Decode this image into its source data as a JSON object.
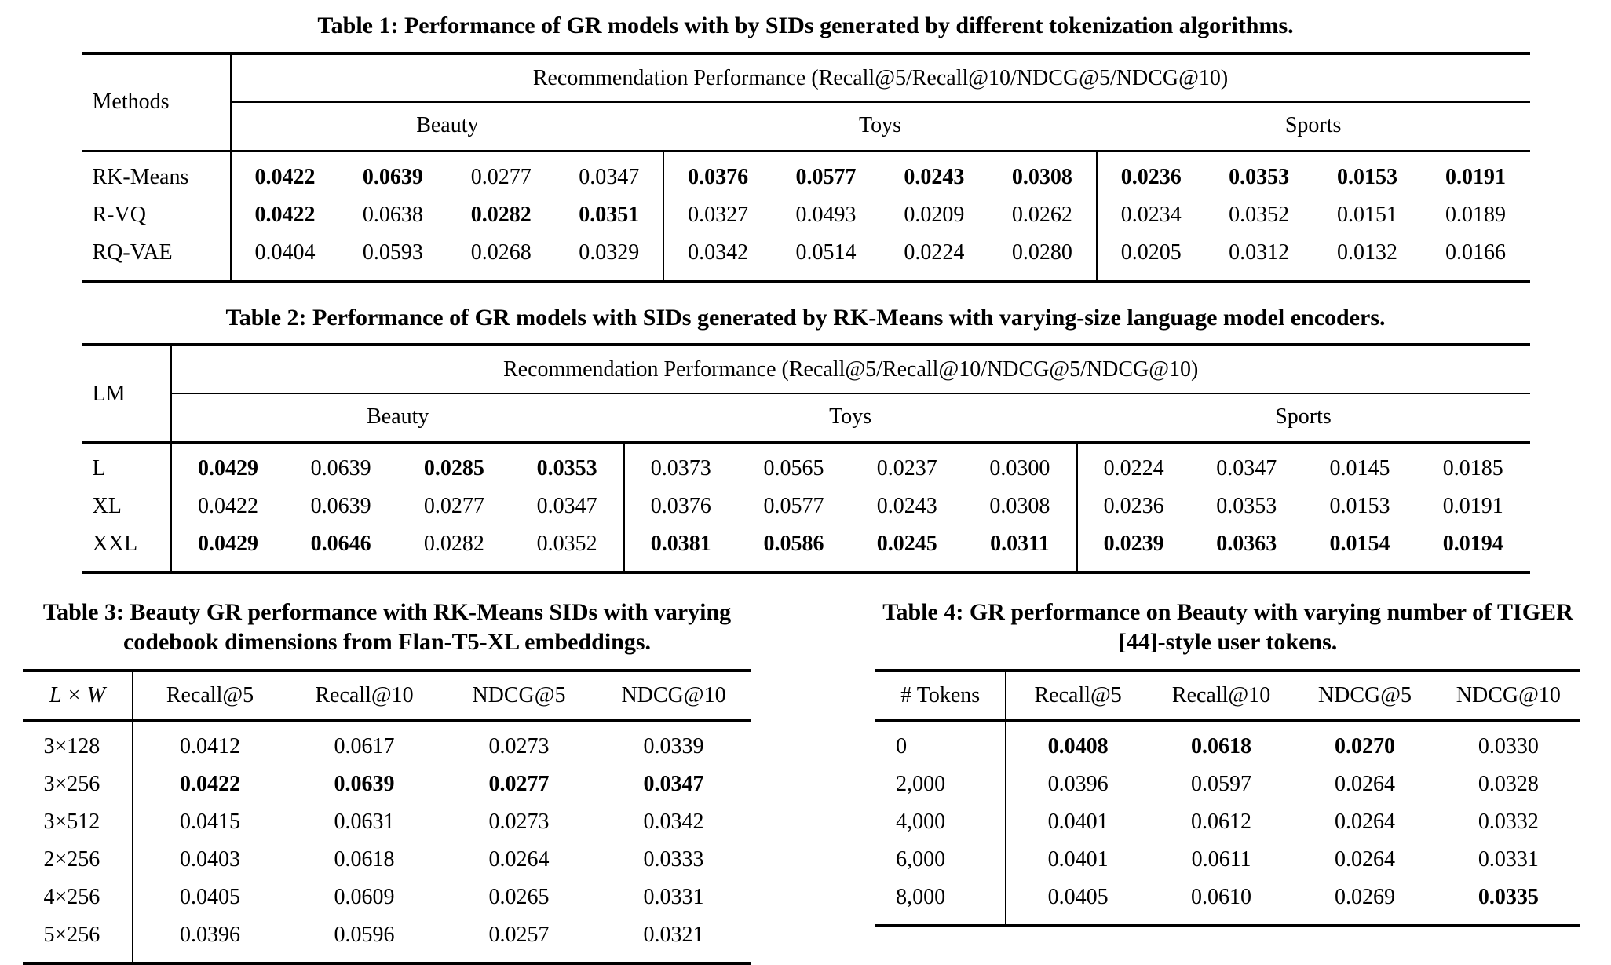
{
  "page": {
    "background": "#ffffff",
    "text_color": "#000000"
  },
  "table1": {
    "caption": "Table 1: Performance of GR models with by SIDs generated by different tokenization algorithms.",
    "row_header": "Methods",
    "perf_header": "Recommendation Performance (Recall@5/Recall@10/NDCG@5/NDCG@10)",
    "groups": [
      "Beauty",
      "Toys",
      "Sports"
    ],
    "rows": [
      {
        "label": "RK-Means",
        "cells": [
          {
            "v": "0.0422",
            "bold": true
          },
          {
            "v": "0.0639",
            "bold": true
          },
          {
            "v": "0.0277"
          },
          {
            "v": "0.0347"
          },
          {
            "v": "0.0376",
            "bold": true
          },
          {
            "v": "0.0577",
            "bold": true
          },
          {
            "v": "0.0243",
            "bold": true
          },
          {
            "v": "0.0308",
            "bold": true
          },
          {
            "v": "0.0236",
            "bold": true
          },
          {
            "v": "0.0353",
            "bold": true
          },
          {
            "v": "0.0153",
            "bold": true
          },
          {
            "v": "0.0191",
            "bold": true
          }
        ]
      },
      {
        "label": "R-VQ",
        "cells": [
          {
            "v": "0.0422",
            "bold": true
          },
          {
            "v": "0.0638"
          },
          {
            "v": "0.0282",
            "bold": true
          },
          {
            "v": "0.0351",
            "bold": true
          },
          {
            "v": "0.0327"
          },
          {
            "v": "0.0493"
          },
          {
            "v": "0.0209"
          },
          {
            "v": "0.0262"
          },
          {
            "v": "0.0234"
          },
          {
            "v": "0.0352"
          },
          {
            "v": "0.0151"
          },
          {
            "v": "0.0189"
          }
        ]
      },
      {
        "label": "RQ-VAE",
        "cells": [
          {
            "v": "0.0404"
          },
          {
            "v": "0.0593"
          },
          {
            "v": "0.0268"
          },
          {
            "v": "0.0329"
          },
          {
            "v": "0.0342"
          },
          {
            "v": "0.0514"
          },
          {
            "v": "0.0224"
          },
          {
            "v": "0.0280"
          },
          {
            "v": "0.0205"
          },
          {
            "v": "0.0312"
          },
          {
            "v": "0.0132"
          },
          {
            "v": "0.0166"
          }
        ]
      }
    ]
  },
  "table2": {
    "caption": "Table 2: Performance of GR models with SIDs generated by RK-Means with varying-size language model encoders.",
    "row_header": "LM",
    "perf_header": "Recommendation Performance (Recall@5/Recall@10/NDCG@5/NDCG@10)",
    "groups": [
      "Beauty",
      "Toys",
      "Sports"
    ],
    "rows": [
      {
        "label": "L",
        "cells": [
          {
            "v": "0.0429",
            "bold": true
          },
          {
            "v": "0.0639"
          },
          {
            "v": "0.0285",
            "bold": true
          },
          {
            "v": "0.0353",
            "bold": true
          },
          {
            "v": "0.0373"
          },
          {
            "v": "0.0565"
          },
          {
            "v": "0.0237"
          },
          {
            "v": "0.0300"
          },
          {
            "v": "0.0224"
          },
          {
            "v": "0.0347"
          },
          {
            "v": "0.0145"
          },
          {
            "v": "0.0185"
          }
        ]
      },
      {
        "label": "XL",
        "cells": [
          {
            "v": "0.0422"
          },
          {
            "v": "0.0639"
          },
          {
            "v": "0.0277"
          },
          {
            "v": "0.0347"
          },
          {
            "v": "0.0376"
          },
          {
            "v": "0.0577"
          },
          {
            "v": "0.0243"
          },
          {
            "v": "0.0308"
          },
          {
            "v": "0.0236"
          },
          {
            "v": "0.0353"
          },
          {
            "v": "0.0153"
          },
          {
            "v": "0.0191"
          }
        ]
      },
      {
        "label": "XXL",
        "cells": [
          {
            "v": "0.0429",
            "bold": true
          },
          {
            "v": "0.0646",
            "bold": true
          },
          {
            "v": "0.0282"
          },
          {
            "v": "0.0352"
          },
          {
            "v": "0.0381",
            "bold": true
          },
          {
            "v": "0.0586",
            "bold": true
          },
          {
            "v": "0.0245",
            "bold": true
          },
          {
            "v": "0.0311",
            "bold": true
          },
          {
            "v": "0.0239",
            "bold": true
          },
          {
            "v": "0.0363",
            "bold": true
          },
          {
            "v": "0.0154",
            "bold": true
          },
          {
            "v": "0.0194",
            "bold": true
          }
        ]
      }
    ]
  },
  "table3": {
    "caption": "Table 3: Beauty GR performance with RK-Means SIDs with varying codebook dimensions from Flan-T5-XL embeddings.",
    "columns": [
      "L × W",
      "Recall@5",
      "Recall@10",
      "NDCG@5",
      "NDCG@10"
    ],
    "rows": [
      {
        "label": "3×128",
        "cells": [
          {
            "v": "0.0412"
          },
          {
            "v": "0.0617"
          },
          {
            "v": "0.0273"
          },
          {
            "v": "0.0339"
          }
        ]
      },
      {
        "label": "3×256",
        "cells": [
          {
            "v": "0.0422",
            "bold": true
          },
          {
            "v": "0.0639",
            "bold": true
          },
          {
            "v": "0.0277",
            "bold": true
          },
          {
            "v": "0.0347",
            "bold": true
          }
        ]
      },
      {
        "label": "3×512",
        "cells": [
          {
            "v": "0.0415"
          },
          {
            "v": "0.0631"
          },
          {
            "v": "0.0273"
          },
          {
            "v": "0.0342"
          }
        ]
      },
      {
        "label": "2×256",
        "cells": [
          {
            "v": "0.0403"
          },
          {
            "v": "0.0618"
          },
          {
            "v": "0.0264"
          },
          {
            "v": "0.0333"
          }
        ]
      },
      {
        "label": "4×256",
        "cells": [
          {
            "v": "0.0405"
          },
          {
            "v": "0.0609"
          },
          {
            "v": "0.0265"
          },
          {
            "v": "0.0331"
          }
        ]
      },
      {
        "label": "5×256",
        "cells": [
          {
            "v": "0.0396"
          },
          {
            "v": "0.0596"
          },
          {
            "v": "0.0257"
          },
          {
            "v": "0.0321"
          }
        ]
      }
    ]
  },
  "table4": {
    "caption": "Table 4: GR performance on Beauty with varying number of TIGER [44]-style user tokens.",
    "columns": [
      "# Tokens",
      "Recall@5",
      "Recall@10",
      "NDCG@5",
      "NDCG@10"
    ],
    "rows": [
      {
        "label": "0",
        "cells": [
          {
            "v": "0.0408",
            "bold": true
          },
          {
            "v": "0.0618",
            "bold": true
          },
          {
            "v": "0.0270",
            "bold": true
          },
          {
            "v": "0.0330"
          }
        ]
      },
      {
        "label": "2,000",
        "cells": [
          {
            "v": "0.0396"
          },
          {
            "v": "0.0597"
          },
          {
            "v": "0.0264"
          },
          {
            "v": "0.0328"
          }
        ]
      },
      {
        "label": "4,000",
        "cells": [
          {
            "v": "0.0401"
          },
          {
            "v": "0.0612"
          },
          {
            "v": "0.0264"
          },
          {
            "v": "0.0332"
          }
        ]
      },
      {
        "label": "6,000",
        "cells": [
          {
            "v": "0.0401"
          },
          {
            "v": "0.0611"
          },
          {
            "v": "0.0264"
          },
          {
            "v": "0.0331"
          }
        ]
      },
      {
        "label": "8,000",
        "cells": [
          {
            "v": "0.0405"
          },
          {
            "v": "0.0610"
          },
          {
            "v": "0.0269"
          },
          {
            "v": "0.0335",
            "bold": true
          }
        ]
      }
    ]
  }
}
